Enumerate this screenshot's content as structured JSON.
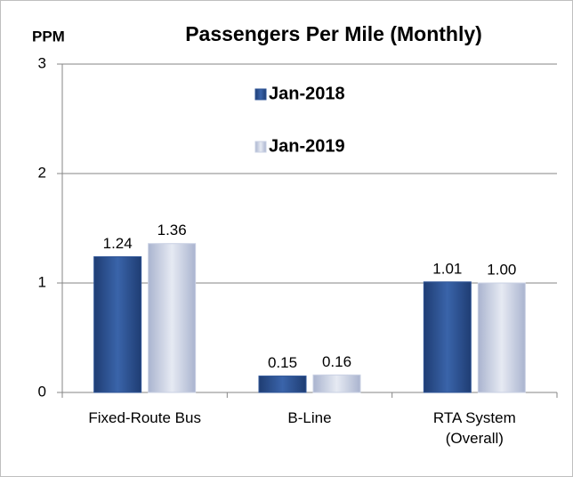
{
  "chart_data": {
    "type": "bar",
    "title": "Passengers Per Mile (Monthly)",
    "y_label": "PPM",
    "categories": [
      "Fixed-Route Bus",
      "B-Line",
      "RTA System (Overall)"
    ],
    "series": [
      {
        "name": "Jan-2018",
        "color": "#2f5597",
        "values": [
          1.24,
          0.15,
          1.01
        ]
      },
      {
        "name": "Jan-2019",
        "color": "#c9d0e3",
        "values": [
          1.36,
          0.16,
          1.0
        ],
        "value_labels": [
          "1.36",
          "0.16",
          "1.00"
        ]
      }
    ],
    "ylim": [
      0,
      3
    ],
    "yticks": [
      0,
      1,
      2,
      3
    ],
    "grid": true,
    "legend": "top"
  }
}
